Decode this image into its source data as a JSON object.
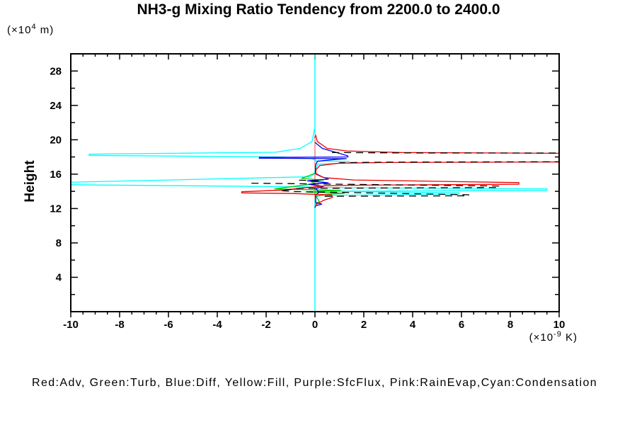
{
  "title": "NH3-g Mixing Ratio Tendency from 2200.0 to 2400.0",
  "ylabel": "Height",
  "y_unit": {
    "base": "(×10",
    "exp": "4",
    "rest": " m)"
  },
  "x_unit": {
    "base": "(×10",
    "exp": "-9",
    "rest": " K)"
  },
  "legend": "Red:Adv, Green:Turb, Blue:Diff, Yellow:Fill, Purple:SfcFlux, Pink:RainEvap,Cyan:Condensation",
  "chart_data": {
    "type": "line",
    "title": "NH3-g Mixing Ratio Tendency from 2200.0 to 2400.0",
    "xlabel": "(×10-9 K)",
    "ylabel": "Height (×104 m)",
    "xlim": [
      -10,
      10
    ],
    "ylim": [
      0,
      30
    ],
    "x_ticks": [
      -10,
      -8,
      -6,
      -4,
      -2,
      0,
      2,
      4,
      6,
      8,
      10
    ],
    "x_minor_step": 0.5,
    "y_ticks": [
      4,
      8,
      12,
      16,
      20,
      24,
      28
    ],
    "y_minor_step": 2,
    "grid": false,
    "legend_position": "bottom-text-line",
    "zero_line_color": "#00FFFF",
    "series": [
      {
        "name": "zero-line",
        "color": "#00FFFF",
        "dash": "",
        "width": 1.2,
        "segments": [
          [
            [
              0,
              29.93
            ],
            [
              0,
              0.07
            ]
          ]
        ]
      },
      {
        "name": "Fill",
        "color": "#FFFF00",
        "dash": "",
        "width": 1.2,
        "segments": [
          [
            [
              0,
              20.6
            ],
            [
              0,
              11.9
            ]
          ]
        ]
      },
      {
        "name": "SfcFlux",
        "color": "#BB00BB",
        "dash": "",
        "width": 1.2,
        "segments": [
          [
            [
              0,
              20.45
            ],
            [
              0,
              12.05
            ]
          ]
        ]
      },
      {
        "name": "RainEvap",
        "color": "#FF8A8A",
        "dash": "",
        "width": 1.2,
        "segments": [
          [
            [
              0,
              20.2
            ],
            [
              0,
              12.3
            ]
          ]
        ]
      },
      {
        "name": "Condensation",
        "color": "#00FFFF",
        "dash": "",
        "width": 1.3,
        "segments": [
          [
            [
              0,
              29.9
            ],
            [
              0,
              21.5
            ],
            [
              -0.12,
              19.8
            ],
            [
              -0.6,
              19.0
            ],
            [
              -1.6,
              18.55
            ],
            [
              -9.25,
              18.33
            ],
            [
              -9.25,
              18.18
            ],
            [
              -1.3,
              18.0
            ],
            [
              -0.12,
              17.8
            ],
            [
              0.06,
              17.55
            ],
            [
              1.4,
              17.48
            ],
            [
              1.4,
              17.32
            ],
            [
              0.12,
              17.15
            ],
            [
              0.02,
              16.5
            ],
            [
              -0.06,
              15.95
            ],
            [
              -0.2,
              15.7
            ],
            [
              -10.4,
              15.03
            ],
            [
              -10.4,
              14.78
            ],
            [
              -0.3,
              14.52
            ],
            [
              -0.04,
              14.45
            ],
            [
              9.5,
              14.28
            ],
            [
              9.5,
              14.1
            ],
            [
              0.1,
              14.02
            ],
            [
              5.9,
              13.83
            ],
            [
              5.9,
              13.68
            ],
            [
              0.06,
              13.52
            ],
            [
              0,
              12.9
            ],
            [
              0,
              0.1
            ]
          ]
        ]
      },
      {
        "name": "Turb",
        "color": "#00CC00",
        "dash": "",
        "width": 1.3,
        "segments": [
          [
            [
              0,
              16.1
            ],
            [
              -0.55,
              15.5
            ],
            [
              0.3,
              15.32
            ],
            [
              -0.15,
              15.1
            ],
            [
              0.02,
              14.9
            ],
            [
              -1.65,
              14.28
            ],
            [
              -0.5,
              14.2
            ],
            [
              1.05,
              14.12
            ],
            [
              -0.35,
              13.92
            ],
            [
              1.2,
              13.78
            ],
            [
              0.4,
              13.62
            ],
            [
              0.05,
              13.42
            ],
            [
              0.18,
              12.82
            ],
            [
              0.02,
              12.55
            ]
          ]
        ]
      },
      {
        "name": "Diff",
        "color": "#0000EE",
        "dash": "",
        "width": 1.3,
        "segments": [
          [
            [
              0,
              19.7
            ],
            [
              0.3,
              19.0
            ],
            [
              0.9,
              18.5
            ],
            [
              1.35,
              18.12
            ],
            [
              1.35,
              18.0
            ],
            [
              -2.28,
              17.95
            ],
            [
              -2.28,
              17.86
            ],
            [
              1.28,
              17.8
            ],
            [
              0.6,
              17.65
            ],
            [
              0.1,
              17.5
            ],
            [
              0.02,
              17.0
            ],
            [
              0.02,
              16.1
            ],
            [
              0.28,
              15.7
            ],
            [
              0.55,
              15.42
            ],
            [
              -0.3,
              15.22
            ],
            [
              0.55,
              15.0
            ],
            [
              -0.25,
              14.82
            ],
            [
              0.35,
              14.58
            ],
            [
              0.04,
              14.32
            ],
            [
              0.16,
              13.88
            ],
            [
              0.03,
              13.58
            ],
            [
              0.03,
              12.72
            ],
            [
              0.28,
              12.52
            ],
            [
              0.03,
              12.32
            ],
            [
              0,
              12.1
            ]
          ]
        ]
      },
      {
        "name": "Adv",
        "color": "#EE0000",
        "dash": "",
        "width": 1.3,
        "segments": [
          [
            [
              0.02,
              20.6
            ],
            [
              0.1,
              19.8
            ],
            [
              0.5,
              19.0
            ],
            [
              1.3,
              18.7
            ],
            [
              3.5,
              18.52
            ],
            [
              10.6,
              18.42
            ],
            [
              10.6,
              17.42
            ],
            [
              3.0,
              17.36
            ],
            [
              1.0,
              17.28
            ],
            [
              0.2,
              17.0
            ],
            [
              0.04,
              16.5
            ],
            [
              0.04,
              16.0
            ],
            [
              0.35,
              15.6
            ],
            [
              1.6,
              15.32
            ],
            [
              8.35,
              15.02
            ],
            [
              8.35,
              14.83
            ],
            [
              2.0,
              14.72
            ],
            [
              0.45,
              14.65
            ],
            [
              -1.3,
              14.15
            ],
            [
              -3.0,
              13.95
            ],
            [
              -3.0,
              13.82
            ],
            [
              -0.9,
              13.75
            ],
            [
              0.68,
              13.58
            ],
            [
              0.72,
              13.3
            ],
            [
              0.35,
              12.95
            ],
            [
              0.06,
              12.5
            ],
            [
              0.02,
              12.25
            ]
          ]
        ]
      },
      {
        "name": "Total",
        "color": "#000000",
        "dash": "10 7",
        "width": 1.3,
        "segments": [
          [
            [
              0.7,
              18.52
            ],
            [
              3.6,
              18.47
            ],
            [
              10.6,
              18.45
            ]
          ],
          [
            [
              10.6,
              17.45
            ],
            [
              3.0,
              17.4
            ],
            [
              1.0,
              17.33
            ]
          ],
          [
            [
              -0.65,
              15.3
            ],
            [
              0.35,
              15.22
            ]
          ],
          [
            [
              -2.6,
              14.95
            ],
            [
              -0.4,
              14.88
            ],
            [
              0.3,
              14.85
            ],
            [
              7.55,
              14.62
            ],
            [
              7.55,
              14.45
            ],
            [
              -0.6,
              14.35
            ],
            [
              -1.4,
              14.08
            ],
            [
              -0.9,
              13.98
            ],
            [
              6.3,
              13.6
            ],
            [
              6.3,
              13.48
            ],
            [
              0.2,
              13.42
            ]
          ]
        ]
      }
    ]
  }
}
